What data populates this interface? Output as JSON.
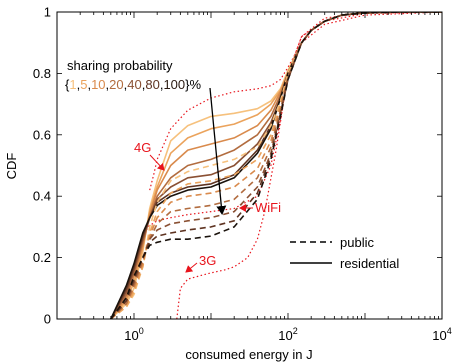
{
  "chart_data": {
    "type": "line",
    "xlabel": "consumed energy in J",
    "ylabel": "CDF",
    "x_scale": "log",
    "xlim": [
      0.1,
      10000
    ],
    "ylim": [
      0,
      1
    ],
    "x_ticks": [
      {
        "value": 1,
        "base": "10",
        "exp": "0"
      },
      {
        "value": 100,
        "base": "10",
        "exp": "2"
      },
      {
        "value": 10000,
        "base": "10",
        "exp": "4"
      }
    ],
    "y_ticks": [
      {
        "value": 0,
        "label": "0"
      },
      {
        "value": 0.2,
        "label": "0.2"
      },
      {
        "value": 0.4,
        "label": "0.4"
      },
      {
        "value": 0.6,
        "label": "0.6"
      },
      {
        "value": 0.8,
        "label": "0.8"
      },
      {
        "value": 1,
        "label": "1"
      }
    ],
    "grid": false,
    "sharing_annotation": {
      "title": "sharing probability",
      "open": "{",
      "values": [
        "1",
        "5",
        "10",
        "20",
        "40",
        "80",
        "100"
      ],
      "separator": ",",
      "close": "}%",
      "colors": [
        "#f6c17d",
        "#eba35c",
        "#d98a4c",
        "#b26c3f",
        "#8a5033",
        "#5e3321",
        "#2a1a12"
      ]
    },
    "legend": {
      "position": "bottom-right",
      "entries": [
        {
          "label": "public",
          "style": "dashed"
        },
        {
          "label": "residential",
          "style": "solid"
        }
      ]
    },
    "reference_curves": [
      {
        "label": "4G",
        "color": "#e8141c",
        "style": "dotted",
        "x": [
          1.6,
          1.8,
          2,
          3,
          5,
          10,
          20,
          40,
          60,
          80,
          100,
          150,
          300,
          1000,
          10000
        ],
        "y": [
          0.42,
          0.47,
          0.52,
          0.62,
          0.68,
          0.72,
          0.74,
          0.75,
          0.76,
          0.78,
          0.82,
          0.9,
          0.96,
          0.99,
          1.0
        ]
      },
      {
        "label": "3G",
        "color": "#e8141c",
        "style": "dotted",
        "x": [
          3.6,
          3.8,
          4,
          5,
          7,
          10,
          15,
          20,
          30,
          40,
          50,
          70,
          100,
          150,
          300,
          1000,
          10000
        ],
        "y": [
          0.0,
          0.05,
          0.1,
          0.13,
          0.14,
          0.15,
          0.16,
          0.17,
          0.2,
          0.26,
          0.35,
          0.55,
          0.8,
          0.92,
          0.97,
          0.995,
          1.0
        ]
      },
      {
        "label": "WiFi",
        "color": "#e8141c",
        "style": "dotted",
        "x": [
          1.1,
          1.3,
          1.5,
          2,
          3,
          5,
          10,
          20,
          40,
          60,
          80,
          100,
          150,
          300,
          1000,
          10000
        ],
        "y": [
          0.15,
          0.24,
          0.3,
          0.32,
          0.33,
          0.34,
          0.35,
          0.36,
          0.4,
          0.5,
          0.65,
          0.8,
          0.92,
          0.98,
          0.998,
          1.0
        ]
      }
    ],
    "reference_labels": [
      {
        "text": "4G",
        "color": "#e8141c"
      },
      {
        "text": "WiFi",
        "color": "#e8141c"
      },
      {
        "text": "3G",
        "color": "#e8141c"
      }
    ],
    "series": [
      {
        "sharing": "1",
        "type": "residential",
        "color": "#f6c17d",
        "style": "solid",
        "x": [
          0.5,
          0.8,
          1,
          1.3,
          1.6,
          2,
          3,
          5,
          10,
          20,
          40,
          60,
          80,
          100,
          150,
          200,
          300,
          500,
          1000,
          3000,
          10000
        ],
        "y": [
          0.0,
          0.05,
          0.1,
          0.22,
          0.36,
          0.45,
          0.58,
          0.63,
          0.66,
          0.67,
          0.685,
          0.71,
          0.75,
          0.81,
          0.9,
          0.94,
          0.97,
          0.99,
          0.997,
          1.0,
          1.0
        ]
      },
      {
        "sharing": "5",
        "type": "residential",
        "color": "#eba35c",
        "style": "solid",
        "x": [
          0.5,
          0.8,
          1,
          1.3,
          1.6,
          2,
          3,
          5,
          10,
          20,
          40,
          60,
          80,
          100,
          150,
          200,
          300,
          500,
          1000,
          3000,
          10000
        ],
        "y": [
          0.0,
          0.06,
          0.12,
          0.23,
          0.35,
          0.43,
          0.54,
          0.59,
          0.62,
          0.635,
          0.665,
          0.7,
          0.745,
          0.805,
          0.9,
          0.94,
          0.97,
          0.99,
          0.997,
          1.0,
          1.0
        ]
      },
      {
        "sharing": "10",
        "type": "residential",
        "color": "#d98a4c",
        "style": "solid",
        "x": [
          0.5,
          0.8,
          1,
          1.3,
          1.6,
          2,
          3,
          5,
          10,
          20,
          40,
          60,
          80,
          100,
          150,
          200,
          300,
          500,
          1000,
          3000,
          10000
        ],
        "y": [
          0.0,
          0.07,
          0.14,
          0.24,
          0.34,
          0.42,
          0.5,
          0.55,
          0.57,
          0.59,
          0.63,
          0.68,
          0.74,
          0.8,
          0.9,
          0.94,
          0.97,
          0.99,
          0.997,
          1.0,
          1.0
        ]
      },
      {
        "sharing": "20",
        "type": "residential",
        "color": "#b26c3f",
        "style": "solid",
        "x": [
          0.5,
          0.8,
          1,
          1.3,
          1.6,
          2,
          3,
          5,
          10,
          20,
          40,
          60,
          80,
          100,
          150,
          200,
          300,
          500,
          1000,
          3000,
          10000
        ],
        "y": [
          0.0,
          0.08,
          0.15,
          0.25,
          0.33,
          0.4,
          0.46,
          0.5,
          0.52,
          0.55,
          0.6,
          0.66,
          0.73,
          0.8,
          0.9,
          0.94,
          0.97,
          0.99,
          0.997,
          1.0,
          1.0
        ]
      },
      {
        "sharing": "40",
        "type": "residential",
        "color": "#8a5033",
        "style": "solid",
        "x": [
          0.5,
          0.8,
          1,
          1.3,
          1.6,
          2,
          3,
          5,
          10,
          20,
          40,
          60,
          80,
          100,
          150,
          200,
          300,
          500,
          1000,
          3000,
          10000
        ],
        "y": [
          0.0,
          0.09,
          0.16,
          0.26,
          0.33,
          0.39,
          0.43,
          0.46,
          0.47,
          0.5,
          0.57,
          0.64,
          0.72,
          0.8,
          0.9,
          0.94,
          0.97,
          0.99,
          0.997,
          1.0,
          1.0
        ]
      },
      {
        "sharing": "80",
        "type": "residential",
        "color": "#5e3321",
        "style": "solid",
        "x": [
          0.5,
          0.8,
          1,
          1.3,
          1.6,
          2,
          3,
          5,
          10,
          20,
          40,
          60,
          80,
          100,
          150,
          200,
          300,
          500,
          1000,
          3000,
          10000
        ],
        "y": [
          0.0,
          0.1,
          0.17,
          0.27,
          0.33,
          0.38,
          0.41,
          0.43,
          0.44,
          0.47,
          0.55,
          0.63,
          0.72,
          0.8,
          0.9,
          0.94,
          0.97,
          0.99,
          0.997,
          1.0,
          1.0
        ]
      },
      {
        "sharing": "100",
        "type": "residential",
        "color": "#1a120c",
        "style": "solid",
        "x": [
          0.5,
          0.8,
          1,
          1.3,
          1.6,
          2,
          3,
          5,
          10,
          20,
          40,
          60,
          80,
          100,
          150,
          200,
          300,
          500,
          1000,
          3000,
          10000
        ],
        "y": [
          0.0,
          0.11,
          0.18,
          0.28,
          0.33,
          0.37,
          0.4,
          0.42,
          0.43,
          0.46,
          0.54,
          0.62,
          0.72,
          0.8,
          0.9,
          0.94,
          0.97,
          0.99,
          0.997,
          1.0,
          1.0
        ]
      },
      {
        "sharing": "1",
        "type": "public",
        "color": "#f6c17d",
        "style": "dashed",
        "x": [
          0.5,
          0.8,
          1,
          1.3,
          1.6,
          2,
          3,
          5,
          10,
          20,
          40,
          60,
          80,
          100,
          150,
          200,
          300,
          500,
          1000,
          3000,
          10000
        ],
        "y": [
          0.0,
          0.04,
          0.08,
          0.17,
          0.3,
          0.38,
          0.45,
          0.48,
          0.5,
          0.52,
          0.56,
          0.63,
          0.71,
          0.8,
          0.9,
          0.94,
          0.97,
          0.99,
          0.997,
          1.0,
          1.0
        ]
      },
      {
        "sharing": "5",
        "type": "public",
        "color": "#eba35c",
        "style": "dashed",
        "x": [
          0.5,
          0.8,
          1,
          1.3,
          1.6,
          2,
          3,
          5,
          10,
          20,
          40,
          60,
          80,
          100,
          150,
          200,
          300,
          500,
          1000,
          3000,
          10000
        ],
        "y": [
          0.0,
          0.04,
          0.09,
          0.17,
          0.28,
          0.35,
          0.41,
          0.44,
          0.45,
          0.47,
          0.52,
          0.6,
          0.7,
          0.79,
          0.9,
          0.94,
          0.97,
          0.99,
          0.997,
          1.0,
          1.0
        ]
      },
      {
        "sharing": "10",
        "type": "public",
        "color": "#d98a4c",
        "style": "dashed",
        "x": [
          0.5,
          0.8,
          1,
          1.3,
          1.6,
          2,
          3,
          5,
          10,
          20,
          40,
          60,
          80,
          100,
          150,
          200,
          300,
          500,
          1000,
          3000,
          10000
        ],
        "y": [
          0.0,
          0.05,
          0.1,
          0.18,
          0.27,
          0.33,
          0.38,
          0.4,
          0.41,
          0.43,
          0.49,
          0.58,
          0.69,
          0.79,
          0.9,
          0.94,
          0.97,
          0.99,
          0.997,
          1.0,
          1.0
        ]
      },
      {
        "sharing": "20",
        "type": "public",
        "color": "#b26c3f",
        "style": "dashed",
        "x": [
          0.5,
          0.8,
          1,
          1.3,
          1.6,
          2,
          3,
          5,
          10,
          20,
          40,
          60,
          80,
          100,
          150,
          200,
          300,
          500,
          1000,
          3000,
          10000
        ],
        "y": [
          0.0,
          0.05,
          0.11,
          0.19,
          0.26,
          0.31,
          0.35,
          0.36,
          0.37,
          0.39,
          0.46,
          0.56,
          0.68,
          0.79,
          0.9,
          0.94,
          0.97,
          0.99,
          0.997,
          1.0,
          1.0
        ]
      },
      {
        "sharing": "40",
        "type": "public",
        "color": "#8a5033",
        "style": "dashed",
        "x": [
          0.5,
          0.8,
          1,
          1.3,
          1.6,
          2,
          3,
          5,
          10,
          20,
          40,
          60,
          80,
          100,
          150,
          200,
          300,
          500,
          1000,
          3000,
          10000
        ],
        "y": [
          0.0,
          0.06,
          0.12,
          0.2,
          0.26,
          0.29,
          0.31,
          0.32,
          0.33,
          0.35,
          0.43,
          0.54,
          0.67,
          0.78,
          0.9,
          0.94,
          0.97,
          0.99,
          0.997,
          1.0,
          1.0
        ]
      },
      {
        "sharing": "80",
        "type": "public",
        "color": "#5e3321",
        "style": "dashed",
        "x": [
          0.5,
          0.8,
          1,
          1.3,
          1.6,
          2,
          3,
          5,
          10,
          20,
          40,
          60,
          80,
          100,
          150,
          200,
          300,
          500,
          1000,
          3000,
          10000
        ],
        "y": [
          0.0,
          0.06,
          0.13,
          0.2,
          0.25,
          0.27,
          0.28,
          0.29,
          0.3,
          0.32,
          0.41,
          0.53,
          0.67,
          0.78,
          0.9,
          0.94,
          0.97,
          0.99,
          0.997,
          1.0,
          1.0
        ]
      },
      {
        "sharing": "100",
        "type": "public",
        "color": "#1a120c",
        "style": "dashed",
        "x": [
          0.5,
          0.8,
          1,
          1.3,
          1.6,
          2,
          3,
          5,
          10,
          20,
          40,
          60,
          80,
          100,
          150,
          200,
          300,
          500,
          1000,
          3000,
          10000
        ],
        "y": [
          0.0,
          0.07,
          0.14,
          0.2,
          0.24,
          0.25,
          0.26,
          0.26,
          0.27,
          0.3,
          0.39,
          0.52,
          0.66,
          0.78,
          0.9,
          0.94,
          0.97,
          0.99,
          0.997,
          1.0,
          1.0
        ]
      }
    ]
  }
}
